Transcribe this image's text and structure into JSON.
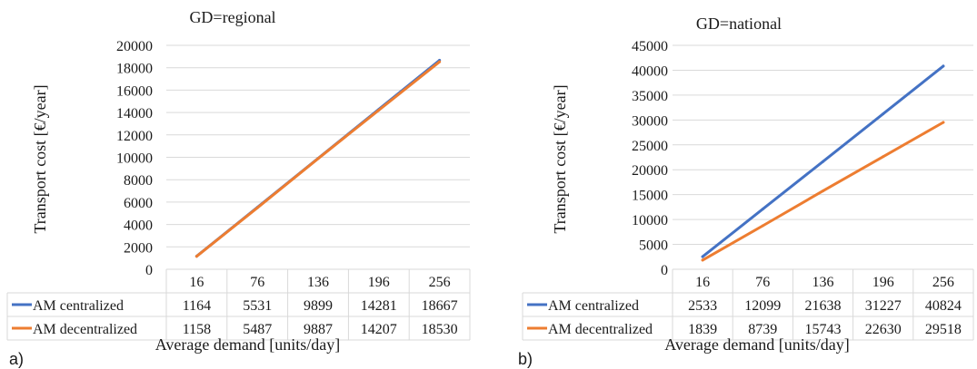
{
  "chart_data": [
    {
      "type": "line",
      "panel_label": "a)",
      "title": "GD=regional",
      "xlabel": "Average demand [units/day]",
      "ylabel": "Transport cost [€/year]",
      "categories": [
        "16",
        "76",
        "136",
        "196",
        "256"
      ],
      "ylim": [
        0,
        20000
      ],
      "yticks": [
        "0",
        "2000",
        "4000",
        "6000",
        "8000",
        "10000",
        "12000",
        "14000",
        "16000",
        "18000",
        "20000"
      ],
      "grid": true,
      "legend": "data-table",
      "series": [
        {
          "name": "AM centralized",
          "color": "#4472C4",
          "values": [
            1164,
            5531,
            9899,
            14281,
            18667
          ],
          "labels": [
            "1164",
            "5531",
            "9899",
            "14281",
            "18667"
          ]
        },
        {
          "name": "AM decentralized",
          "color": "#ED7D31",
          "values": [
            1158,
            5487,
            9887,
            14207,
            18530
          ],
          "labels": [
            "1158",
            "5487",
            "9887",
            "14207",
            "18530"
          ]
        }
      ]
    },
    {
      "type": "line",
      "panel_label": "b)",
      "title": "GD=national",
      "xlabel": "Average demand [units/day]",
      "ylabel": "Transport cost [€/year]",
      "categories": [
        "16",
        "76",
        "136",
        "196",
        "256"
      ],
      "ylim": [
        0,
        45000
      ],
      "yticks": [
        "0",
        "5000",
        "10000",
        "15000",
        "20000",
        "25000",
        "30000",
        "35000",
        "40000",
        "45000"
      ],
      "grid": true,
      "legend": "data-table",
      "series": [
        {
          "name": "AM centralized",
          "color": "#4472C4",
          "values": [
            2533,
            12099,
            21638,
            31227,
            40824
          ],
          "labels": [
            "2533",
            "12099",
            "21638",
            "31227",
            "40824"
          ]
        },
        {
          "name": "AM decentralized",
          "color": "#ED7D31",
          "values": [
            1839,
            8739,
            15743,
            22630,
            29518
          ],
          "labels": [
            "1839",
            "8739",
            "15743",
            "22630",
            "29518"
          ]
        }
      ]
    }
  ]
}
